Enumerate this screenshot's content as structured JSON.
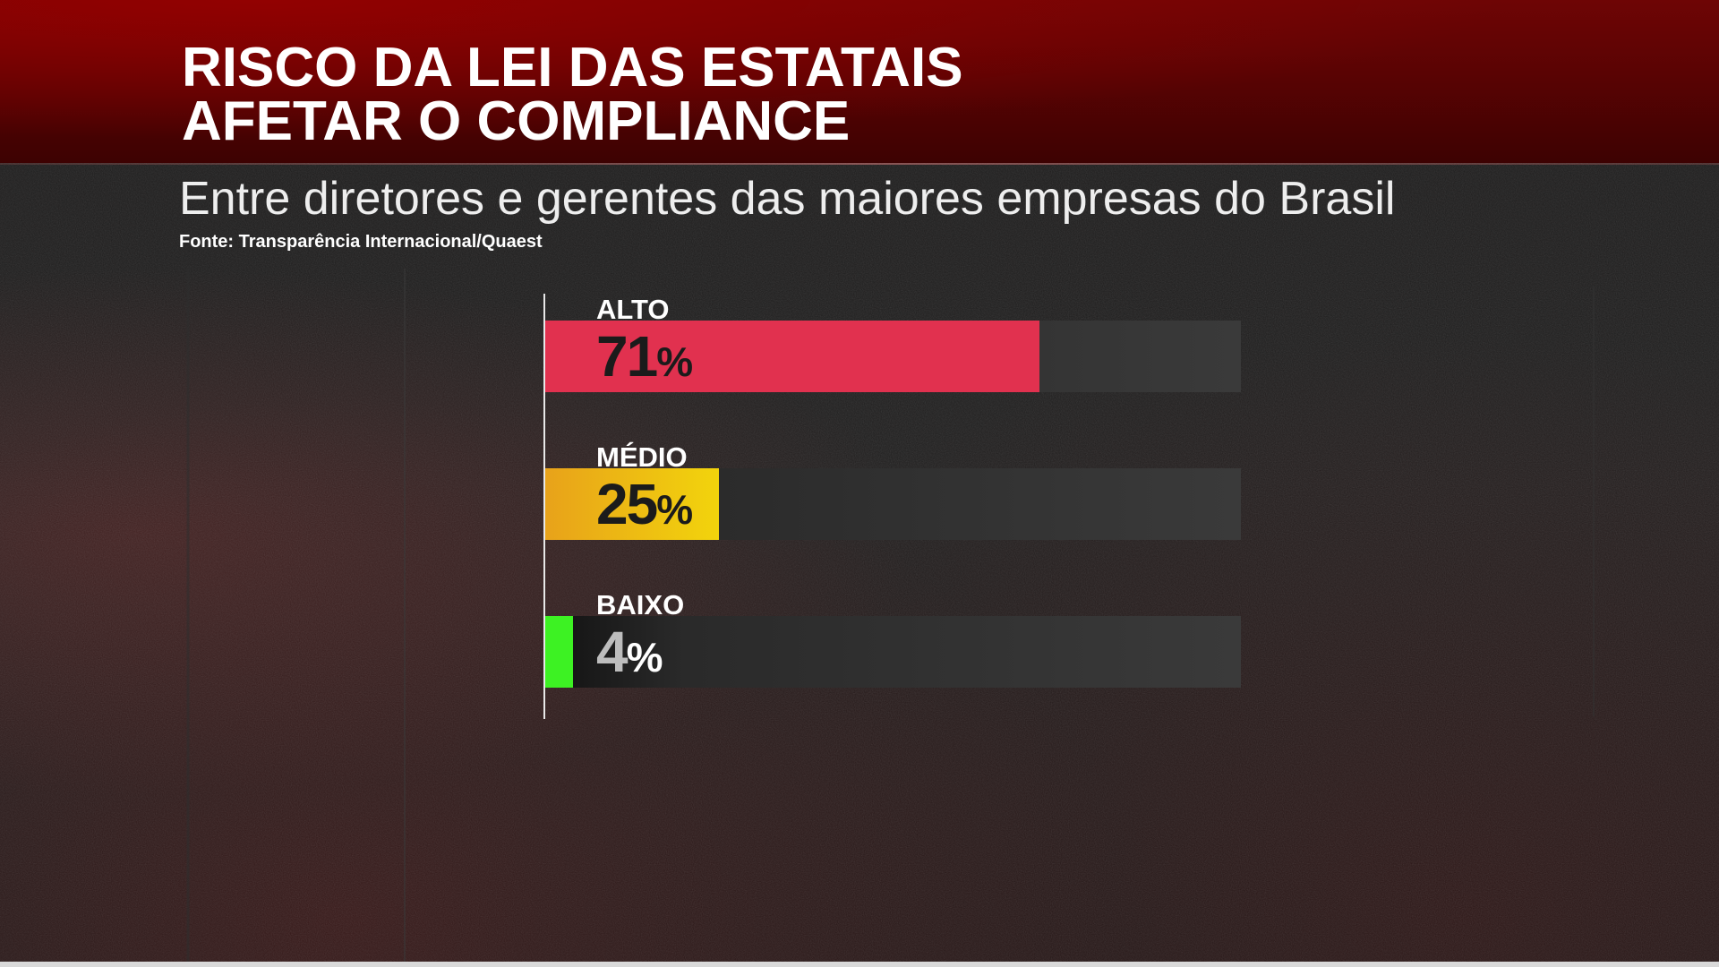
{
  "header": {
    "title_line1": "RISCO DA LEI DAS ESTATAIS",
    "title_line2": "AFETAR O COMPLIANCE",
    "subtitle": "Entre diretores e gerentes das maiores empresas do Brasil",
    "source": "Fonte: Transparência Internacional/Quaest"
  },
  "colors": {
    "header_red": "#5a0303",
    "alto": "#e1314f",
    "medio_start": "#e8a21a",
    "medio_end": "#f2d40c",
    "baixo": "#3df223",
    "track": "#3a3a3a"
  },
  "chart_data": {
    "type": "bar",
    "orientation": "horizontal",
    "title": "RISCO DA LEI DAS ESTATAIS AFETAR O COMPLIANCE",
    "subtitle": "Entre diretores e gerentes das maiores empresas do Brasil",
    "categories": [
      "ALTO",
      "MÉDIO",
      "BAIXO"
    ],
    "values": [
      71,
      25,
      4
    ],
    "value_suffix": "%",
    "xlim": [
      0,
      100
    ],
    "grid": false,
    "legend": "none",
    "value_labels": [
      {
        "number": "71",
        "suffix": "%"
      },
      {
        "number": "25",
        "suffix": "%"
      },
      {
        "number": "4",
        "suffix": "%"
      }
    ]
  }
}
